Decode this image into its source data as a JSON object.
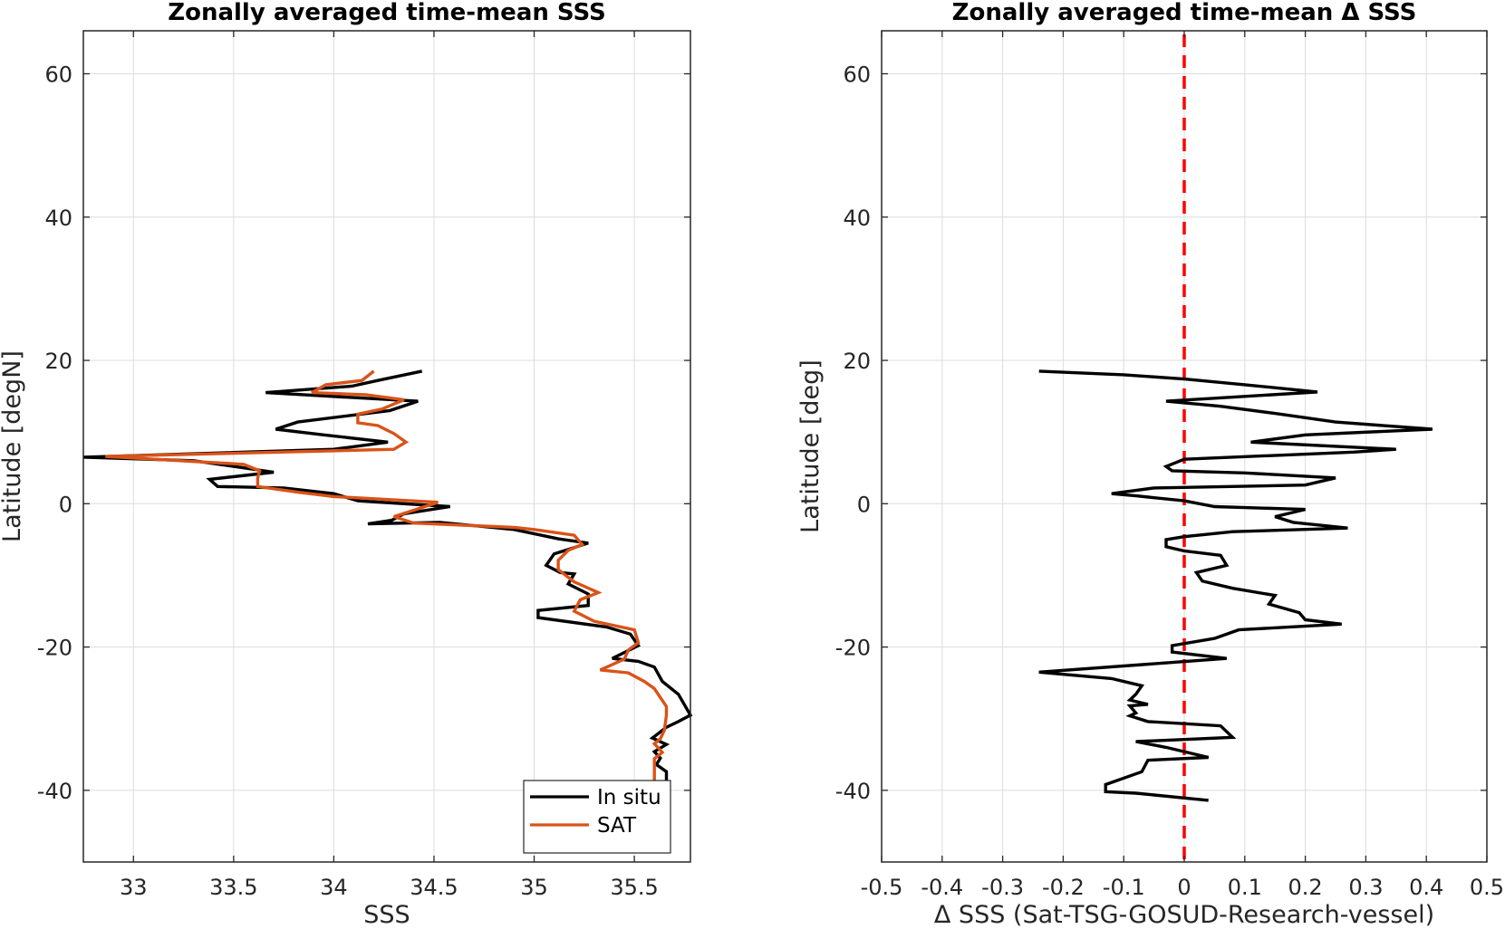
{
  "chart_data": [
    {
      "type": "line",
      "title": "Zonally averaged time-mean SSS",
      "xlabel": "SSS",
      "ylabel": "Latitude [degN]",
      "xlim": [
        32.75,
        35.78
      ],
      "ylim": [
        -50,
        66
      ],
      "xticks": [
        33,
        33.5,
        34,
        34.5,
        35,
        35.5
      ],
      "yticks": [
        -40,
        -20,
        0,
        20,
        40,
        60
      ],
      "grid": true,
      "legend": "bottom-right",
      "series": [
        {
          "name": "In situ",
          "color": "#000000",
          "points": [
            [
              34.44,
              18.5
            ],
            [
              34.22,
              17.2
            ],
            [
              34.09,
              16.4
            ],
            [
              33.66,
              15.5
            ],
            [
              34.42,
              14.3
            ],
            [
              34.28,
              13.0
            ],
            [
              33.82,
              11.4
            ],
            [
              33.71,
              10.4
            ],
            [
              33.95,
              9.6
            ],
            [
              34.27,
              8.6
            ],
            [
              34.0,
              7.6
            ],
            [
              32.75,
              6.5
            ],
            [
              33.3,
              6.0
            ],
            [
              33.55,
              5.0
            ],
            [
              33.7,
              4.4
            ],
            [
              33.38,
              3.4
            ],
            [
              33.42,
              2.4
            ],
            [
              33.75,
              2.2
            ],
            [
              34.0,
              1.4
            ],
            [
              34.12,
              0.4
            ],
            [
              34.58,
              -0.4
            ],
            [
              34.35,
              -1.4
            ],
            [
              34.29,
              -2.3
            ],
            [
              34.17,
              -2.8
            ],
            [
              34.53,
              -2.6
            ],
            [
              34.9,
              -3.6
            ],
            [
              35.12,
              -4.9
            ],
            [
              35.27,
              -5.5
            ],
            [
              35.1,
              -7.0
            ],
            [
              35.06,
              -8.6
            ],
            [
              35.13,
              -9.6
            ],
            [
              35.2,
              -9.8
            ],
            [
              35.17,
              -11.2
            ],
            [
              35.27,
              -12.6
            ],
            [
              35.27,
              -14.2
            ],
            [
              35.02,
              -14.9
            ],
            [
              35.02,
              -15.9
            ],
            [
              35.36,
              -17.2
            ],
            [
              35.48,
              -18.2
            ],
            [
              35.52,
              -19.8
            ],
            [
              35.39,
              -21.6
            ],
            [
              35.52,
              -22.0
            ],
            [
              35.6,
              -22.8
            ],
            [
              35.64,
              -24.8
            ],
            [
              35.72,
              -26.6
            ],
            [
              35.78,
              -29.5
            ],
            [
              35.72,
              -30.4
            ],
            [
              35.66,
              -31.2
            ],
            [
              35.59,
              -32.7
            ],
            [
              35.66,
              -33.6
            ],
            [
              35.6,
              -34.6
            ],
            [
              35.63,
              -35.5
            ],
            [
              35.61,
              -36.4
            ],
            [
              35.66,
              -37.4
            ],
            [
              35.66,
              -38.7
            ]
          ]
        },
        {
          "name": "SAT",
          "color": "#d95319",
          "points": [
            [
              34.2,
              18.5
            ],
            [
              34.14,
              17.2
            ],
            [
              33.96,
              16.6
            ],
            [
              33.89,
              15.5
            ],
            [
              34.16,
              15.2
            ],
            [
              34.35,
              14.5
            ],
            [
              34.24,
              13.2
            ],
            [
              34.12,
              12.5
            ],
            [
              34.12,
              11.3
            ],
            [
              34.22,
              10.9
            ],
            [
              34.3,
              9.8
            ],
            [
              34.36,
              8.6
            ],
            [
              34.3,
              7.6
            ],
            [
              32.86,
              6.6
            ],
            [
              33.55,
              5.5
            ],
            [
              33.63,
              4.6
            ],
            [
              33.62,
              3.6
            ],
            [
              33.62,
              2.4
            ],
            [
              33.82,
              1.6
            ],
            [
              34.0,
              1.0
            ],
            [
              34.52,
              0.2
            ],
            [
              34.3,
              -1.8
            ],
            [
              34.4,
              -2.7
            ],
            [
              34.9,
              -3.3
            ],
            [
              35.0,
              -3.6
            ],
            [
              35.2,
              -4.4
            ],
            [
              35.24,
              -5.7
            ],
            [
              35.17,
              -6.5
            ],
            [
              35.12,
              -7.9
            ],
            [
              35.12,
              -9.2
            ],
            [
              35.2,
              -10.9
            ],
            [
              35.32,
              -12.4
            ],
            [
              35.23,
              -13.4
            ],
            [
              35.2,
              -15.0
            ],
            [
              35.3,
              -16.4
            ],
            [
              35.5,
              -17.6
            ],
            [
              35.52,
              -19.4
            ],
            [
              35.47,
              -20.4
            ],
            [
              35.45,
              -21.7
            ],
            [
              35.33,
              -23.2
            ],
            [
              35.47,
              -23.6
            ],
            [
              35.55,
              -24.8
            ],
            [
              35.6,
              -25.8
            ],
            [
              35.66,
              -28.3
            ],
            [
              35.66,
              -29.5
            ],
            [
              35.65,
              -31.6
            ],
            [
              35.63,
              -32.8
            ],
            [
              35.6,
              -33.5
            ],
            [
              35.64,
              -34.7
            ],
            [
              35.6,
              -35.6
            ],
            [
              35.6,
              -37.6
            ],
            [
              35.6,
              -38.6
            ]
          ]
        }
      ]
    },
    {
      "type": "line",
      "title": "Zonally averaged time-mean Δ SSS",
      "xlabel": "Δ SSS (Sat-TSG-GOSUD-Research-vessel)",
      "ylabel": "Latitude [deg]",
      "xlim": [
        -0.5,
        0.5
      ],
      "ylim": [
        -50,
        66
      ],
      "xticks": [
        -0.5,
        -0.4,
        -0.3,
        -0.2,
        -0.1,
        0,
        0.1,
        0.2,
        0.3,
        0.4,
        0.5
      ],
      "xticklabels": [
        "-0.5",
        "-0.4",
        "-0.3",
        "-0.2",
        "-0.1",
        "0",
        "0.1",
        "0.2",
        "0.3",
        "0.4",
        "0.5"
      ],
      "yticks": [
        -40,
        -20,
        0,
        20,
        40,
        60
      ],
      "grid": true,
      "reference_line": {
        "x": 0,
        "color": "#ff0000",
        "style": "dashed"
      },
      "series": [
        {
          "color": "#000000",
          "points": [
            [
              -0.24,
              18.5
            ],
            [
              -0.1,
              18.0
            ],
            [
              0.0,
              17.4
            ],
            [
              0.1,
              16.6
            ],
            [
              0.22,
              15.6
            ],
            [
              -0.03,
              14.3
            ],
            [
              0.06,
              13.6
            ],
            [
              0.15,
              12.6
            ],
            [
              0.25,
              11.4
            ],
            [
              0.41,
              10.4
            ],
            [
              0.2,
              9.6
            ],
            [
              0.11,
              8.6
            ],
            [
              0.35,
              7.6
            ],
            [
              0.28,
              7.2
            ],
            [
              0.0,
              6.2
            ],
            [
              -0.03,
              5.2
            ],
            [
              -0.02,
              4.6
            ],
            [
              0.1,
              4.3
            ],
            [
              0.25,
              3.6
            ],
            [
              0.2,
              2.6
            ],
            [
              -0.05,
              2.2
            ],
            [
              -0.12,
              1.4
            ],
            [
              -0.08,
              1.1
            ],
            [
              0.0,
              0.4
            ],
            [
              0.05,
              -0.4
            ],
            [
              0.2,
              -0.8
            ],
            [
              0.15,
              -1.8
            ],
            [
              0.18,
              -2.6
            ],
            [
              0.27,
              -3.4
            ],
            [
              0.08,
              -3.9
            ],
            [
              0.0,
              -4.6
            ],
            [
              -0.03,
              -5.0
            ],
            [
              -0.03,
              -6.0
            ],
            [
              0.0,
              -6.6
            ],
            [
              0.06,
              -7.2
            ],
            [
              0.07,
              -8.6
            ],
            [
              0.02,
              -9.6
            ],
            [
              0.03,
              -10.8
            ],
            [
              0.08,
              -11.8
            ],
            [
              0.15,
              -12.8
            ],
            [
              0.14,
              -14.0
            ],
            [
              0.19,
              -15.2
            ],
            [
              0.2,
              -16.2
            ],
            [
              0.26,
              -16.8
            ],
            [
              0.09,
              -17.6
            ],
            [
              0.05,
              -18.8
            ],
            [
              -0.02,
              -19.8
            ],
            [
              -0.02,
              -20.7
            ],
            [
              0.07,
              -21.6
            ],
            [
              -0.24,
              -23.5
            ],
            [
              -0.12,
              -24.4
            ],
            [
              -0.09,
              -25.0
            ],
            [
              -0.07,
              -25.4
            ],
            [
              -0.08,
              -26.6
            ],
            [
              -0.09,
              -27.4
            ],
            [
              -0.06,
              -28.0
            ],
            [
              -0.09,
              -28.2
            ],
            [
              -0.08,
              -29.2
            ],
            [
              -0.09,
              -29.6
            ],
            [
              -0.06,
              -30.4
            ],
            [
              0.06,
              -31.0
            ],
            [
              0.08,
              -32.6
            ],
            [
              -0.08,
              -33.2
            ],
            [
              -0.03,
              -34.0
            ],
            [
              0.04,
              -35.4
            ],
            [
              -0.06,
              -35.8
            ],
            [
              -0.07,
              -37.4
            ],
            [
              -0.13,
              -39.2
            ],
            [
              -0.13,
              -40.2
            ],
            [
              -0.08,
              -40.4
            ],
            [
              0.04,
              -41.4
            ]
          ]
        }
      ]
    }
  ]
}
